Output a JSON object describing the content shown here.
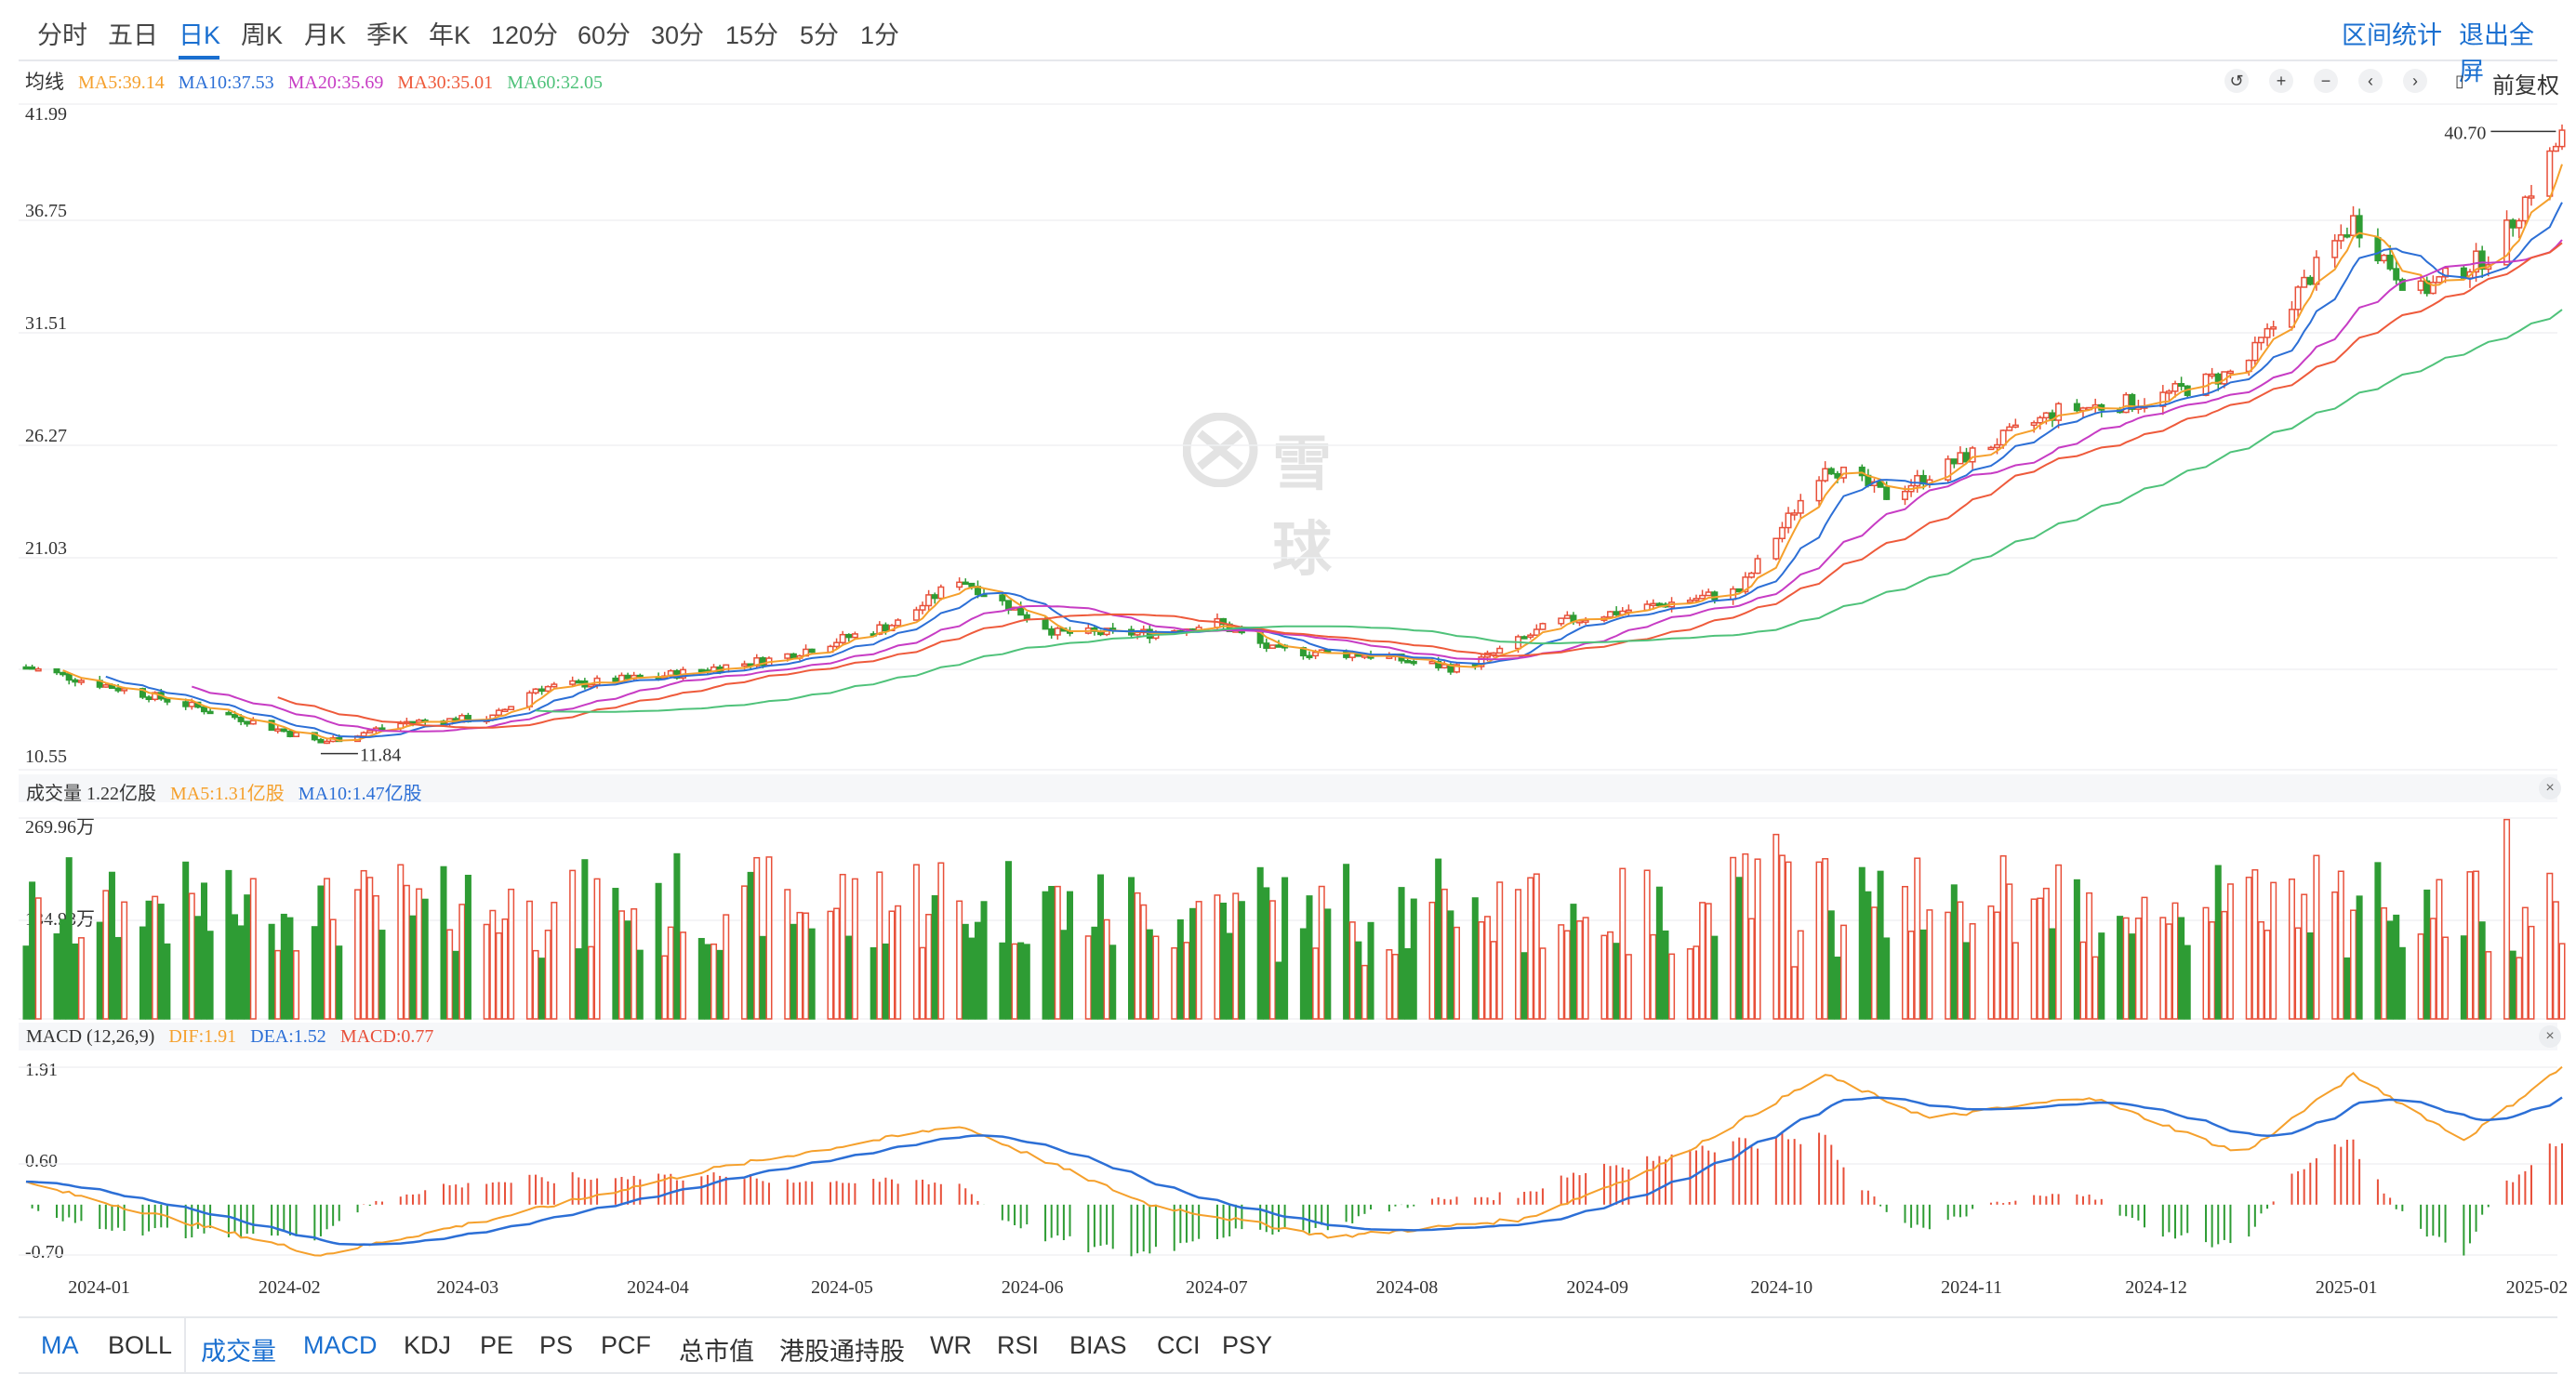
{
  "periods": [
    "分时",
    "五日",
    "日K",
    "周K",
    "月K",
    "季K",
    "年K",
    "120分",
    "60分",
    "30分",
    "15分",
    "5分",
    "1分"
  ],
  "active_period": "日K",
  "top_actions": [
    "区间统计",
    "退出全屏"
  ],
  "toolbar": {
    "icons": [
      "undo-icon",
      "zoom-in-icon",
      "zoom-out-icon",
      "scroll-left-icon",
      "scroll-right-icon",
      "candle-style-icon"
    ],
    "adjust": "前复权"
  },
  "main_legend": {
    "label": "均线",
    "ma5": "MA5:39.14",
    "ma10": "MA10:37.53",
    "ma20": "MA20:35.69",
    "ma30": "MA30:35.01",
    "ma60": "MA60:32.05"
  },
  "price_axis": [
    "41.99",
    "36.75",
    "31.51",
    "26.27",
    "21.03",
    "10.55"
  ],
  "markers": {
    "high": "40.70",
    "low": "11.84"
  },
  "watermark": "雪球",
  "volume_legend": {
    "label": "成交量 1.22亿股",
    "ma5": "MA5:1.31亿股",
    "ma10": "MA10:1.47亿股"
  },
  "volume_axis": [
    "269.96万",
    "134.98万"
  ],
  "macd_legend": {
    "label": "MACD (12,26,9)",
    "dif": "DIF:1.91",
    "dea": "DEA:1.52",
    "macd": "MACD:0.77"
  },
  "macd_axis": [
    "1.91",
    "0.60",
    "-0.70"
  ],
  "date_axis": [
    "2024-01",
    "2024-02",
    "2024-03",
    "2024-04",
    "2024-05",
    "2024-06",
    "2024-07",
    "2024-08",
    "2024-09",
    "2024-10",
    "2024-11",
    "2024-12",
    "2025-01",
    "2025-02"
  ],
  "indicators": [
    "MA",
    "BOLL",
    "成交量",
    "MACD",
    "KDJ",
    "PE",
    "PS",
    "PCF",
    "总市值",
    "港股通持股",
    "WR",
    "RSI",
    "BIAS",
    "CCI",
    "PSY"
  ],
  "active_indicators": [
    "MA",
    "成交量",
    "MACD"
  ],
  "colors": {
    "up": "#e8503a",
    "down": "#2e9c34",
    "ma5": "#f5a02c",
    "ma10": "#2c6fd6",
    "ma20": "#c73cc4",
    "ma30": "#ee5a3b",
    "ma60": "#4fc27a",
    "accent": "#1a6fd0"
  },
  "chart_data": {
    "type": "candlestick",
    "x_range": [
      "2023-12-20",
      "2025-02-05"
    ],
    "y_range": [
      10.55,
      41.99
    ],
    "price_keypoints": [
      {
        "date": "2023-12-20",
        "close": 15.4
      },
      {
        "date": "2024-01-10",
        "close": 14.0
      },
      {
        "date": "2024-01-25",
        "close": 12.9
      },
      {
        "date": "2024-02-06",
        "close": 11.84
      },
      {
        "date": "2024-02-20",
        "close": 12.8
      },
      {
        "date": "2024-03-05",
        "close": 13.0
      },
      {
        "date": "2024-03-12",
        "close": 14.4
      },
      {
        "date": "2024-04-02",
        "close": 15.0
      },
      {
        "date": "2024-04-20",
        "close": 15.8
      },
      {
        "date": "2024-05-10",
        "close": 17.5
      },
      {
        "date": "2024-05-20",
        "close": 19.6
      },
      {
        "date": "2024-06-05",
        "close": 17.0
      },
      {
        "date": "2024-06-20",
        "close": 17.0
      },
      {
        "date": "2024-07-01",
        "close": 17.5
      },
      {
        "date": "2024-07-10",
        "close": 16.2
      },
      {
        "date": "2024-07-25",
        "close": 16.0
      },
      {
        "date": "2024-08-10",
        "close": 15.3
      },
      {
        "date": "2024-08-25",
        "close": 17.5
      },
      {
        "date": "2024-09-10",
        "close": 18.3
      },
      {
        "date": "2024-09-24",
        "close": 19.0
      },
      {
        "date": "2024-10-08",
        "close": 25.0
      },
      {
        "date": "2024-10-18",
        "close": 23.5
      },
      {
        "date": "2024-11-01",
        "close": 25.5
      },
      {
        "date": "2024-11-15",
        "close": 27.5
      },
      {
        "date": "2024-11-30",
        "close": 28.0
      },
      {
        "date": "2024-12-15",
        "close": 29.5
      },
      {
        "date": "2024-12-25",
        "close": 33.5
      },
      {
        "date": "2025-01-02",
        "close": 36.5
      },
      {
        "date": "2025-01-12",
        "close": 33.0
      },
      {
        "date": "2025-01-25",
        "close": 35.0
      },
      {
        "date": "2025-02-05",
        "close": 40.5
      }
    ],
    "volume_max": "269.96万",
    "macd_range": [
      -0.7,
      1.91
    ],
    "macd_keypoints": [
      {
        "date": "2023-12-20",
        "dif": 0.3
      },
      {
        "date": "2024-02-06",
        "dif": -0.7
      },
      {
        "date": "2024-03-05",
        "dif": -0.2
      },
      {
        "date": "2024-04-10",
        "dif": 0.5
      },
      {
        "date": "2024-05-20",
        "dif": 1.1
      },
      {
        "date": "2024-06-20",
        "dif": 0.0
      },
      {
        "date": "2024-07-20",
        "dif": -0.45
      },
      {
        "date": "2024-08-20",
        "dif": -0.2
      },
      {
        "date": "2024-09-10",
        "dif": 0.5
      },
      {
        "date": "2024-10-08",
        "dif": 1.8
      },
      {
        "date": "2024-10-25",
        "dif": 1.2
      },
      {
        "date": "2024-11-20",
        "dif": 1.5
      },
      {
        "date": "2024-12-15",
        "dif": 0.7
      },
      {
        "date": "2025-01-02",
        "dif": 1.8
      },
      {
        "date": "2025-01-20",
        "dif": 0.9
      },
      {
        "date": "2025-02-05",
        "dif": 1.91
      }
    ]
  }
}
